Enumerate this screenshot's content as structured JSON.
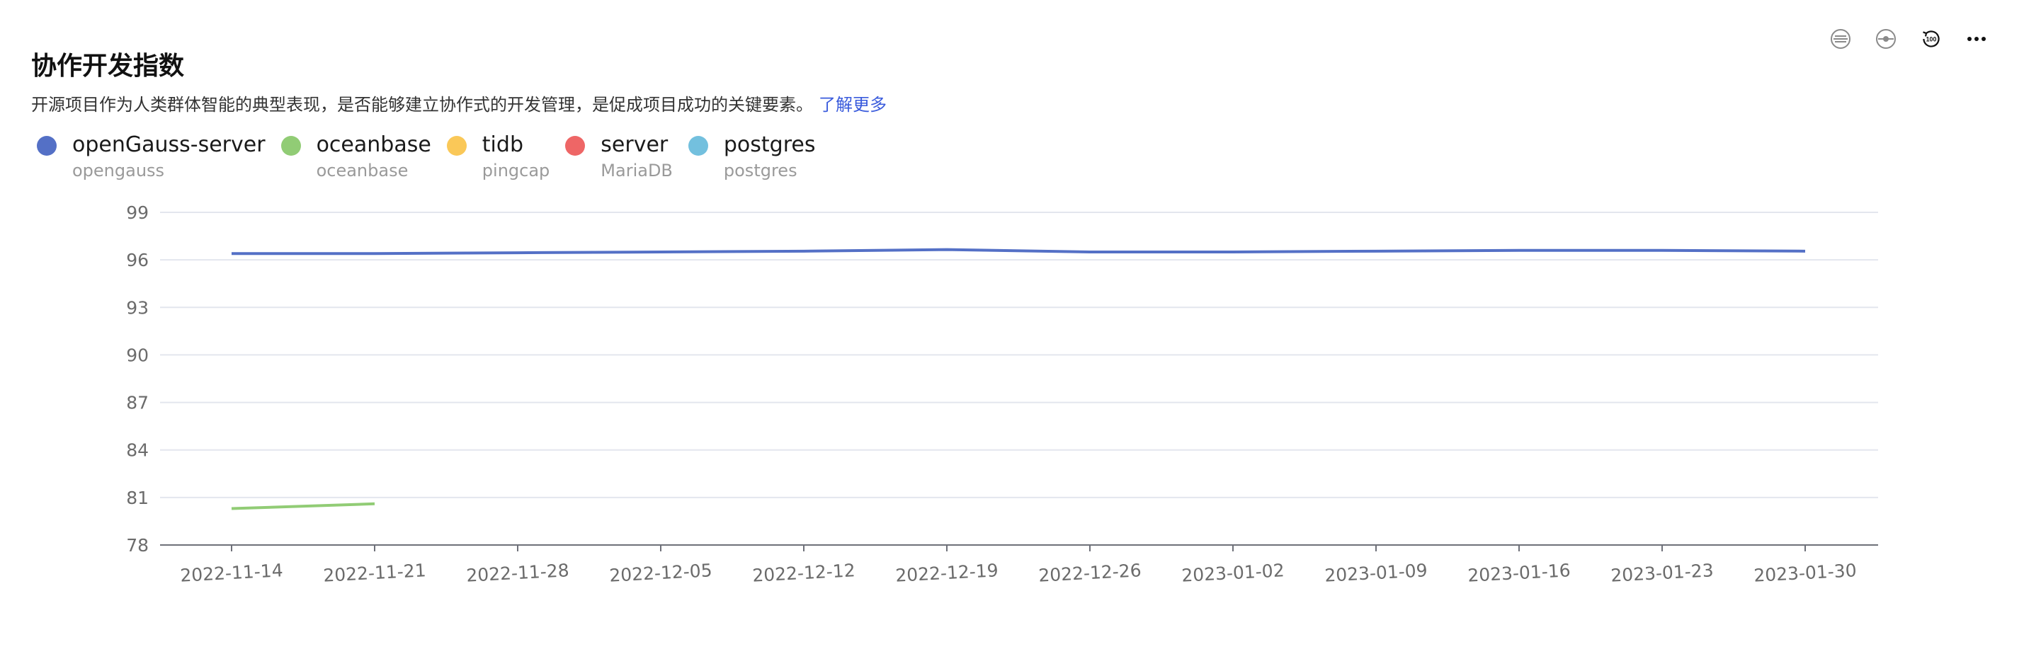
{
  "header": {
    "title": "协作开发指数",
    "description": "开源项目作为人类群体智能的典型表现，是否能够建立协作式的开发管理，是促成项目成功的关键要素。",
    "learn_more": "了解更多"
  },
  "toolbar": [
    {
      "name": "list-icon"
    },
    {
      "name": "toggle-icon"
    },
    {
      "name": "reset-100-icon"
    },
    {
      "name": "more-icon"
    }
  ],
  "legend": [
    {
      "name": "openGauss-server",
      "org": "opengauss",
      "color": "#5470c6"
    },
    {
      "name": "oceanbase",
      "org": "oceanbase",
      "color": "#91cc75"
    },
    {
      "name": "tidb",
      "org": "pingcap",
      "color": "#fac858"
    },
    {
      "name": "server",
      "org": "MariaDB",
      "color": "#ee6666"
    },
    {
      "name": "postgres",
      "org": "postgres",
      "color": "#73c0de"
    }
  ],
  "chart_data": {
    "type": "line",
    "x": [
      "2022-11-14",
      "2022-11-21",
      "2022-11-28",
      "2022-12-05",
      "2022-12-12",
      "2022-12-19",
      "2022-12-26",
      "2023-01-02",
      "2023-01-09",
      "2023-01-16",
      "2023-01-23",
      "2023-01-30"
    ],
    "ylim": [
      78,
      99
    ],
    "yticks": [
      78,
      81,
      84,
      87,
      90,
      93,
      96,
      99
    ],
    "grid": true,
    "legend_position": "top-left",
    "series": [
      {
        "name": "openGauss-server",
        "color": "#5470c6",
        "values": [
          96.4,
          96.4,
          96.45,
          96.5,
          96.55,
          96.65,
          96.5,
          96.5,
          96.55,
          96.6,
          96.6,
          96.55
        ]
      },
      {
        "name": "oceanbase",
        "color": "#91cc75",
        "values": [
          80.3,
          80.6,
          null,
          null,
          null,
          null,
          null,
          null,
          null,
          null,
          null,
          null
        ]
      }
    ]
  }
}
